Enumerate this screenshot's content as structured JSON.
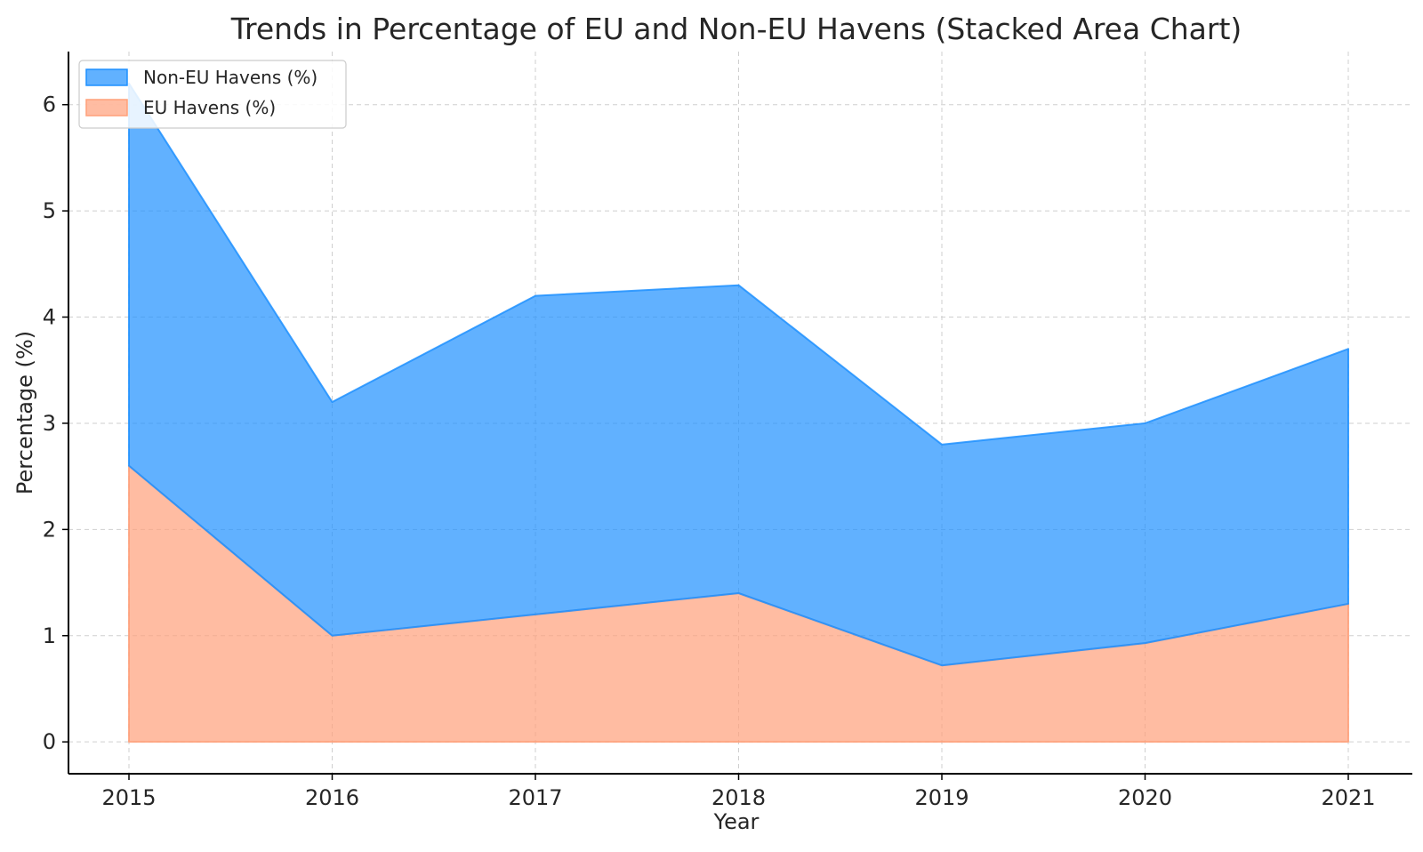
{
  "chart_data": {
    "type": "area",
    "stacked": true,
    "title": "Trends in Percentage of EU and Non-EU Havens (Stacked Area Chart)",
    "xlabel": "Year",
    "ylabel": "Percentage (%)",
    "categories": [
      "2015",
      "2016",
      "2017",
      "2018",
      "2019",
      "2020",
      "2021"
    ],
    "series": [
      {
        "name": "EU Havens (%)",
        "values": [
          2.6,
          1.0,
          1.2,
          1.4,
          0.72,
          0.93,
          1.3
        ],
        "color": "#FFA07A"
      },
      {
        "name": "Non-EU Havens (%)",
        "values": [
          3.6,
          2.2,
          3.0,
          2.9,
          2.08,
          2.07,
          2.4
        ],
        "color": "#1E90FF"
      }
    ],
    "ylim": [
      -0.3,
      6.5
    ],
    "yticks": [
      "0",
      "1",
      "2",
      "3",
      "4",
      "5",
      "6"
    ],
    "grid": true,
    "legend_position": "top-left",
    "legend_entries": [
      "Non-EU Havens (%)",
      "EU Havens (%)"
    ]
  }
}
